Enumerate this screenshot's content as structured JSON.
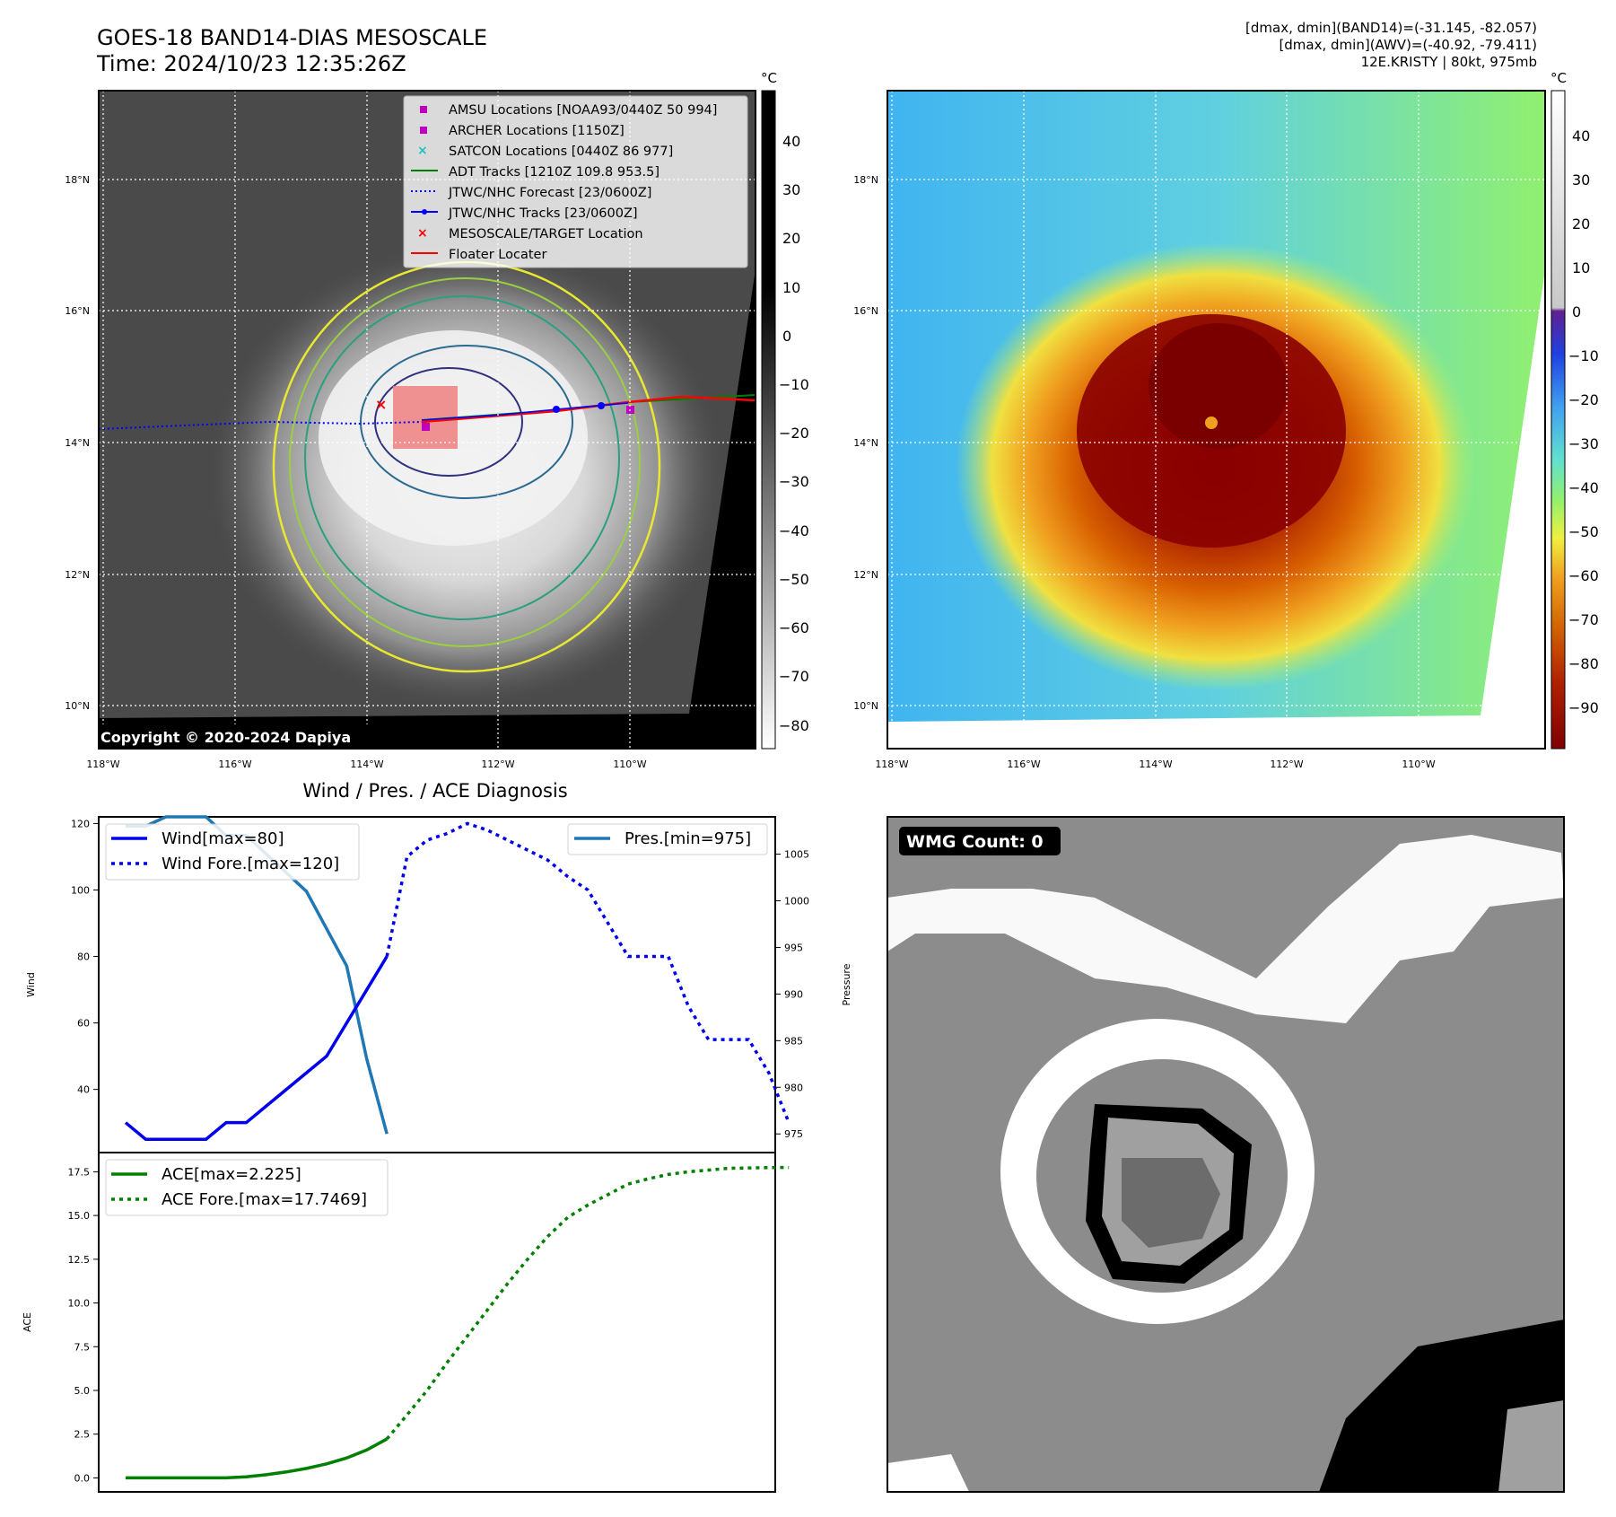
{
  "header": {
    "title_line1": "GOES-18 BAND14-DIAS MESOSCALE",
    "title_line2": "Time: 2024/10/23 12:35:26Z",
    "info_line1": "[dmax, dmin](BAND14)=(-31.145, -82.057)",
    "info_line2": "[dmax, dmin](AWV)=(-40.92, -79.411)",
    "info_line3": "12E.KRISTY | 80kt, 975mb"
  },
  "map": {
    "lat_labels": [
      "18°N",
      "16°N",
      "14°N",
      "12°N",
      "10°N"
    ],
    "lon_labels": [
      "118°W",
      "116°W",
      "114°W",
      "112°W",
      "110°W"
    ],
    "copyright": "Copyright © 2020-2024 Dapiya",
    "legend": [
      "AMSU Locations [NOAA93/0440Z 50 994]",
      "ARCHER Locations [1150Z]",
      "SATCON Locations [0440Z 86 977]",
      "ADT Tracks [1210Z 109.8 953.5]",
      "JTWC/NHC Forecast [23/0600Z]",
      "JTWC/NHC Tracks [23/0600Z]",
      "MESOSCALE/TARGET Location",
      "Floater Locater"
    ],
    "legend_colors": [
      "#c000c0",
      "#c000c0",
      "#20c0c0",
      "#008000",
      "#0000ff",
      "#0000ff",
      "#ff0000",
      "#ff0000"
    ],
    "cb1_unit": "°C",
    "cb1_ticks": [
      "40",
      "30",
      "20",
      "10",
      "0",
      "−10",
      "−20",
      "−30",
      "−40",
      "−50",
      "−60",
      "−70",
      "−80"
    ],
    "cb2_unit": "°C",
    "cb2_ticks": [
      "40",
      "30",
      "20",
      "10",
      "0",
      "−10",
      "−20",
      "−30",
      "−40",
      "−50",
      "−60",
      "−70",
      "−80",
      "−90"
    ]
  },
  "wind_panel": {
    "title": "Wind / Pres. / ACE Diagnosis",
    "wind_ylabel": "Wind",
    "pres_ylabel": "Pressure",
    "ace_ylabel": "ACE",
    "legend_wind": "Wind[max=80]",
    "legend_wind_fore": "Wind Fore.[max=120]",
    "legend_pres": "Pres.[min=975]",
    "legend_ace": "ACE[max=2.225]",
    "legend_ace_fore": "ACE Fore.[max=17.7469]"
  },
  "wmg": {
    "label": "WMG Count: 0"
  },
  "chart_data": [
    {
      "type": "line",
      "name_ref": "wind",
      "x": [
        0,
        1,
        2,
        3,
        4,
        5,
        6,
        7,
        8,
        9,
        10,
        11,
        12,
        13
      ],
      "series": [
        {
          "name": "Wind[max=80]",
          "values": [
            30,
            25,
            25,
            25,
            25,
            30,
            30,
            35,
            40,
            45,
            50,
            60,
            70,
            80
          ],
          "style": "solid",
          "color": "#0000ee"
        },
        {
          "name": "Wind Fore.[max=120]",
          "x": [
            13,
            14,
            15,
            16,
            17,
            18,
            19,
            20,
            21,
            22,
            23,
            24,
            25,
            26,
            27,
            28,
            29,
            30,
            31,
            32,
            33
          ],
          "values": [
            80,
            110,
            115,
            117,
            120,
            118,
            115,
            112,
            109,
            104,
            100,
            90,
            80,
            80,
            80,
            65,
            55,
            55,
            55,
            45,
            30
          ],
          "style": "dotted",
          "color": "#0000ee"
        }
      ],
      "ylim": [
        21,
        122
      ],
      "yticks": [
        40,
        60,
        80,
        100,
        120
      ],
      "secondary": {
        "name": "Pres.[min=975]",
        "x": [
          0,
          1,
          2,
          3,
          4,
          5,
          6,
          7,
          8,
          9,
          10,
          11,
          12,
          13
        ],
        "values": [
          1008,
          1008,
          1009,
          1009,
          1009,
          1007,
          1007,
          1005,
          1003,
          1001,
          997,
          993,
          983,
          975
        ],
        "ylim": [
          973,
          1009
        ],
        "yticks": [
          975,
          980,
          985,
          990,
          995,
          1000,
          1005
        ],
        "color": "#1f77b4"
      }
    },
    {
      "type": "line",
      "name_ref": "ace",
      "series": [
        {
          "name": "ACE[max=2.225]",
          "x": [
            0,
            1,
            2,
            3,
            4,
            5,
            6,
            7,
            8,
            9,
            10,
            11,
            12,
            13
          ],
          "values": [
            0,
            0,
            0,
            0,
            0,
            0,
            0.06,
            0.18,
            0.34,
            0.54,
            0.8,
            1.14,
            1.6,
            2.225
          ],
          "style": "solid",
          "color": "#008000"
        },
        {
          "name": "ACE Fore.[max=17.7469]",
          "x": [
            13,
            14,
            15,
            16,
            17,
            18,
            19,
            20,
            21,
            22,
            23,
            24,
            25,
            26,
            27,
            28,
            29,
            30,
            31,
            32,
            33
          ],
          "values": [
            2.225,
            3.6,
            5.0,
            6.6,
            8.1,
            9.6,
            11.1,
            12.5,
            13.8,
            14.9,
            15.6,
            16.2,
            16.8,
            17.1,
            17.35,
            17.5,
            17.6,
            17.7,
            17.72,
            17.74,
            17.7469
          ],
          "style": "dotted",
          "color": "#008000"
        }
      ],
      "ylim": [
        -0.8,
        18.6
      ],
      "yticks": [
        0.0,
        2.5,
        5.0,
        7.5,
        10.0,
        12.5,
        15.0,
        17.5
      ]
    }
  ]
}
